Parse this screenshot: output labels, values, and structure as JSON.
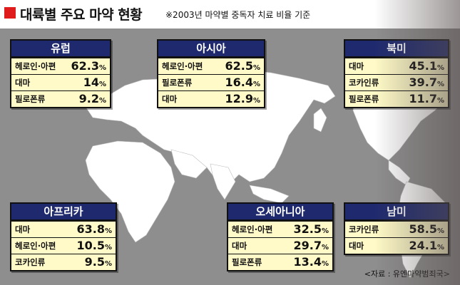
{
  "header": {
    "title": "대륙별 주요 마약 현황",
    "subtitle": "※2003년 마약별 중독자 치료 비율 기준"
  },
  "regions": [
    {
      "key": "europe",
      "title": "유럽",
      "rows": [
        {
          "label": "헤로인·아편",
          "value": "62.3",
          "unit": "%"
        },
        {
          "label": "대마",
          "value": "14",
          "unit": "%"
        },
        {
          "label": "필로폰류",
          "value": "9.2",
          "unit": "%"
        }
      ]
    },
    {
      "key": "asia",
      "title": "아시아",
      "rows": [
        {
          "label": "헤로인·아편",
          "value": "62.5",
          "unit": "%"
        },
        {
          "label": "필로폰류",
          "value": "16.4",
          "unit": "%"
        },
        {
          "label": "대마",
          "value": "12.9",
          "unit": "%"
        }
      ]
    },
    {
      "key": "north-america",
      "title": "북미",
      "rows": [
        {
          "label": "대마",
          "value": "45.1",
          "unit": "%"
        },
        {
          "label": "코카인류",
          "value": "39.7",
          "unit": "%"
        },
        {
          "label": "필로폰류",
          "value": "11.7",
          "unit": "%"
        }
      ]
    },
    {
      "key": "africa",
      "title": "아프리카",
      "rows": [
        {
          "label": "대마",
          "value": "63.8",
          "unit": "%"
        },
        {
          "label": "헤로인·아편",
          "value": "10.5",
          "unit": "%"
        },
        {
          "label": "코카인류",
          "value": "9.5",
          "unit": "%"
        }
      ]
    },
    {
      "key": "oceania",
      "title": "오세아니아",
      "rows": [
        {
          "label": "헤로인·아편",
          "value": "32.5",
          "unit": "%"
        },
        {
          "label": "대마",
          "value": "29.7",
          "unit": "%"
        },
        {
          "label": "필로폰류",
          "value": "13.4",
          "unit": "%"
        }
      ]
    },
    {
      "key": "south-america",
      "title": "남미",
      "rows": [
        {
          "label": "코카인류",
          "value": "58.5",
          "unit": "%"
        },
        {
          "label": "대마",
          "value": "24.1",
          "unit": "%"
        }
      ]
    }
  ],
  "source": "<자료 : 유엔마약범죄국>",
  "colors": {
    "header_box": "#1f2a6e",
    "box_bg": "#fffac7",
    "marker": "#e01b1b",
    "land": "#ffffff",
    "sea": "#8e8e8e"
  }
}
